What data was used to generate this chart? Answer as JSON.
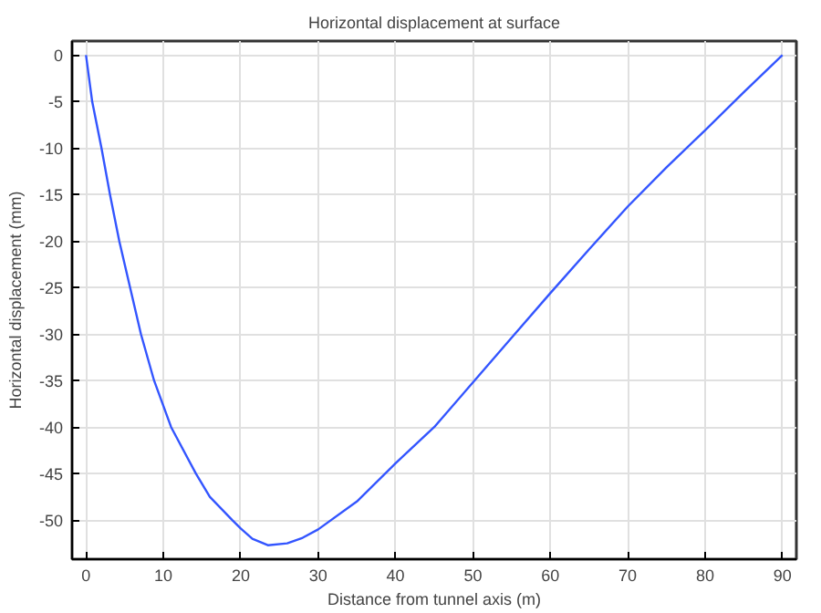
{
  "chart_data": {
    "type": "line",
    "title": "Horizontal displacement at surface",
    "xlabel": "Distance from tunnel axis (m)",
    "ylabel": "Horizontal displacement (mm)",
    "x": [
      0,
      0.8,
      2,
      3.1,
      4.3,
      5.7,
      7.1,
      8.8,
      11,
      14.2,
      16,
      18.9,
      20,
      21.5,
      23.5,
      26,
      28,
      30,
      35,
      40,
      45,
      50,
      55,
      60,
      65,
      70,
      75,
      80,
      85,
      90
    ],
    "series": [
      {
        "color": "#3355ff",
        "values": [
          0,
          -5,
          -10,
          -15,
          -20,
          -25,
          -30,
          -35,
          -40,
          -45,
          -47.5,
          -50,
          -50.9,
          -52,
          -52.7,
          -52.5,
          -51.9,
          -51,
          -48,
          -43.9,
          -40,
          -35.2,
          -30.4,
          -25.6,
          -20.9,
          -16.3,
          -12.1,
          -8.1,
          -4,
          0
        ]
      }
    ],
    "xlim": [
      -1.8,
      91.8
    ],
    "ylim": [
      -54.2,
      1.5
    ],
    "xticks": [
      0,
      10,
      20,
      30,
      40,
      50,
      60,
      70,
      80,
      90
    ],
    "yticks": [
      0,
      -5,
      -10,
      -15,
      -20,
      -25,
      -30,
      -35,
      -40,
      -45,
      -50
    ],
    "grid": true,
    "line_style": "solid",
    "marker": "none"
  }
}
